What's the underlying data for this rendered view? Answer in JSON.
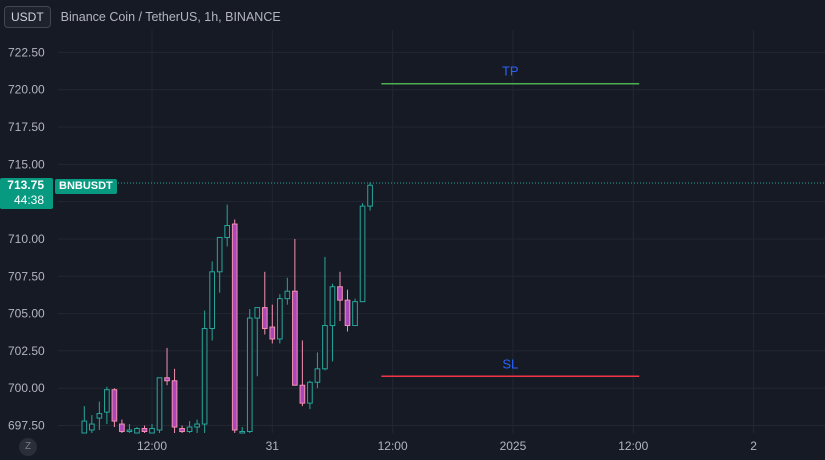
{
  "header": {
    "currency": "USDT",
    "symbol_title": "Binance Coin / TetherUS, 1h, BINANCE"
  },
  "price_badge": {
    "price": "713.75",
    "countdown": "44:38"
  },
  "ticker_badge": "BNBUSDT",
  "zoom_button": "Z",
  "colors": {
    "background": "#161a25",
    "up": "#26a69a",
    "down": "#ab47bc",
    "wick_down": "#f48fb1",
    "tp_line": "#4caf50",
    "sl_line": "#f23645",
    "label": "#2962ff"
  },
  "chart_data": {
    "type": "candlestick",
    "title": "Binance Coin / TetherUS, 1h, BINANCE",
    "ylim": [
      697.0,
      724.0
    ],
    "y_ticks": [
      722.5,
      720.0,
      717.5,
      715.0,
      712.5,
      710.0,
      707.5,
      705.0,
      702.5,
      700.0,
      697.5
    ],
    "y_tick_labels": [
      "722.50",
      "720.00",
      "717.50",
      "715.00",
      "712.50",
      "710.00",
      "707.50",
      "705.00",
      "702.50",
      "700.00",
      "697.50"
    ],
    "x_tick_labels": [
      {
        "label": "12:00",
        "index": 9
      },
      {
        "label": "31",
        "index": 25
      },
      {
        "label": "12:00",
        "index": 41
      },
      {
        "label": "2025",
        "index": 57
      },
      {
        "label": "12:00",
        "index": 73
      },
      {
        "label": "2",
        "index": 89
      }
    ],
    "index_range": [
      -3.5,
      98.5
    ],
    "candles": [
      {
        "open": 697.0,
        "high": 698.8,
        "low": 697.0,
        "close": 697.8
      },
      {
        "open": 697.2,
        "high": 698.2,
        "low": 697.0,
        "close": 697.6
      },
      {
        "open": 698.0,
        "high": 699.1,
        "low": 697.2,
        "close": 698.3
      },
      {
        "open": 698.4,
        "high": 700.1,
        "low": 697.6,
        "close": 699.9
      },
      {
        "open": 699.9,
        "high": 700.0,
        "low": 697.4,
        "close": 697.8
      },
      {
        "open": 697.6,
        "high": 697.9,
        "low": 697.0,
        "close": 697.1
      },
      {
        "open": 697.1,
        "high": 697.6,
        "low": 697.0,
        "close": 697.2
      },
      {
        "open": 697.0,
        "high": 697.4,
        "low": 697.0,
        "close": 697.3
      },
      {
        "open": 697.3,
        "high": 697.5,
        "low": 697.0,
        "close": 697.1
      },
      {
        "open": 697.0,
        "high": 697.6,
        "low": 697.0,
        "close": 697.3
      },
      {
        "open": 697.2,
        "high": 700.7,
        "low": 697.0,
        "close": 700.7
      },
      {
        "open": 700.7,
        "high": 702.7,
        "low": 700.2,
        "close": 700.5
      },
      {
        "open": 700.5,
        "high": 701.3,
        "low": 697.0,
        "close": 697.4
      },
      {
        "open": 697.3,
        "high": 697.5,
        "low": 697.0,
        "close": 697.1
      },
      {
        "open": 697.1,
        "high": 697.8,
        "low": 697.0,
        "close": 697.4
      },
      {
        "open": 697.4,
        "high": 697.9,
        "low": 697.0,
        "close": 697.6
      },
      {
        "open": 697.6,
        "high": 705.2,
        "low": 697.0,
        "close": 704.0
      },
      {
        "open": 704.0,
        "high": 708.5,
        "low": 703.2,
        "close": 707.8
      },
      {
        "open": 707.8,
        "high": 710.1,
        "low": 706.4,
        "close": 710.1
      },
      {
        "open": 710.1,
        "high": 712.3,
        "low": 709.5,
        "close": 710.9
      },
      {
        "open": 711.0,
        "high": 711.3,
        "low": 697.0,
        "close": 697.2
      },
      {
        "open": 697.0,
        "high": 697.4,
        "low": 697.0,
        "close": 697.1
      },
      {
        "open": 697.1,
        "high": 705.3,
        "low": 697.0,
        "close": 704.7
      },
      {
        "open": 704.7,
        "high": 705.4,
        "low": 700.8,
        "close": 705.4
      },
      {
        "open": 705.4,
        "high": 707.8,
        "low": 703.6,
        "close": 704.0
      },
      {
        "open": 704.1,
        "high": 705.6,
        "low": 703.0,
        "close": 703.3
      },
      {
        "open": 703.3,
        "high": 706.3,
        "low": 703.0,
        "close": 706.0
      },
      {
        "open": 706.0,
        "high": 707.4,
        "low": 705.6,
        "close": 706.5
      },
      {
        "open": 706.5,
        "high": 710.0,
        "low": 700.2,
        "close": 700.2
      },
      {
        "open": 700.2,
        "high": 703.2,
        "low": 698.8,
        "close": 699.0
      },
      {
        "open": 699.0,
        "high": 700.5,
        "low": 698.6,
        "close": 700.4
      },
      {
        "open": 700.4,
        "high": 702.4,
        "low": 700.0,
        "close": 701.3
      },
      {
        "open": 701.3,
        "high": 708.8,
        "low": 701.2,
        "close": 704.2
      },
      {
        "open": 704.2,
        "high": 707.0,
        "low": 701.8,
        "close": 706.8
      },
      {
        "open": 706.8,
        "high": 707.8,
        "low": 704.5,
        "close": 705.9
      },
      {
        "open": 705.9,
        "high": 706.6,
        "low": 703.8,
        "close": 704.2
      },
      {
        "open": 704.2,
        "high": 706.0,
        "low": 704.2,
        "close": 705.8
      },
      {
        "open": 705.8,
        "high": 712.4,
        "low": 705.8,
        "close": 712.2
      },
      {
        "open": 712.2,
        "high": 713.8,
        "low": 711.9,
        "close": 713.6
      }
    ],
    "horizontal_levels": [
      {
        "label": "TP",
        "value": 720.4,
        "start_index": 39.5,
        "end_index": 73.8
      },
      {
        "label": "SL",
        "value": 700.8,
        "start_index": 39.5,
        "end_index": 73.8
      }
    ],
    "current_price_line": 713.75
  }
}
